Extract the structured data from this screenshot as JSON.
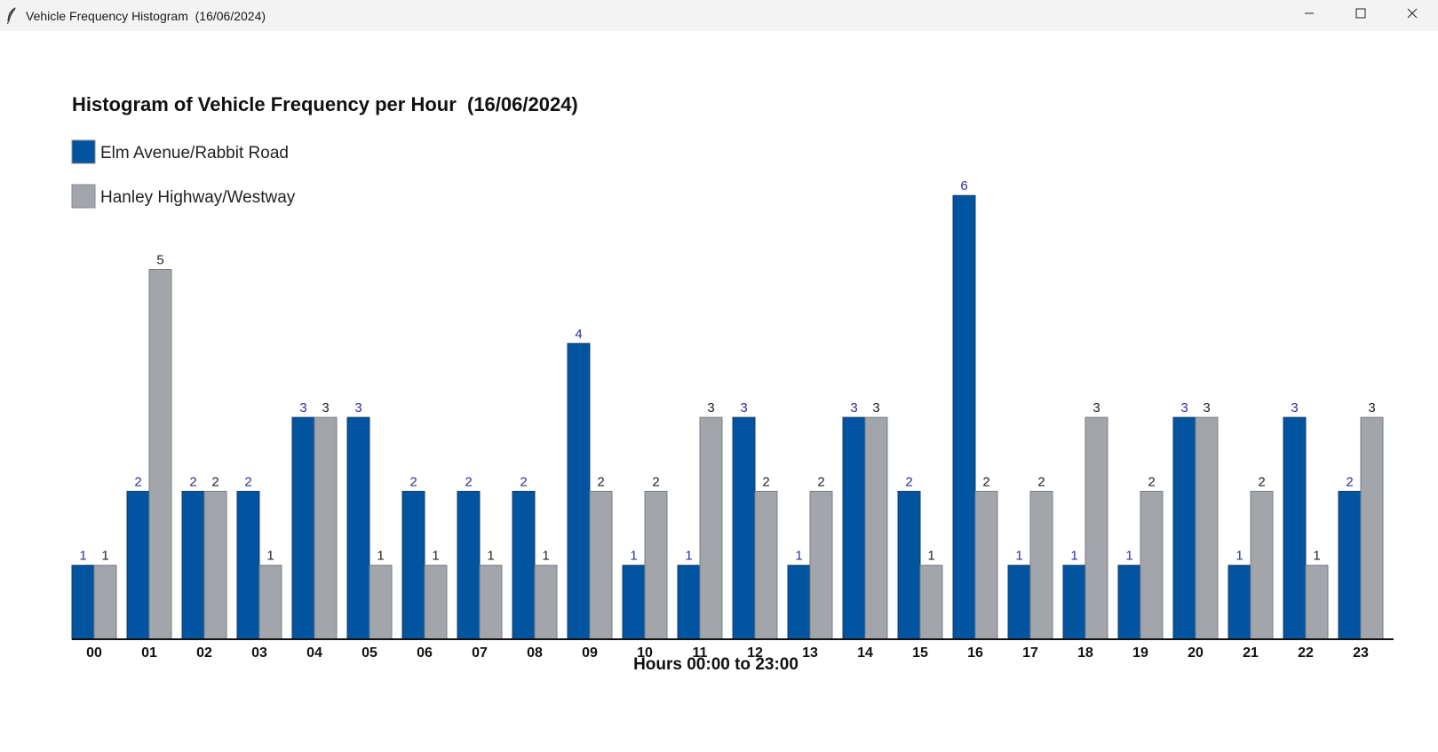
{
  "window": {
    "title": "Vehicle Frequency Histogram  (16/06/2024)"
  },
  "chart_data": {
    "type": "bar",
    "title": "Histogram of Vehicle Frequency per Hour  (16/06/2024)",
    "xlabel": "Hours 00:00 to 23:00",
    "ylabel": "",
    "categories": [
      "00",
      "01",
      "02",
      "03",
      "04",
      "05",
      "06",
      "07",
      "08",
      "09",
      "10",
      "11",
      "12",
      "13",
      "14",
      "15",
      "16",
      "17",
      "18",
      "19",
      "20",
      "21",
      "22",
      "23"
    ],
    "series": [
      {
        "name": "Elm Avenue/Rabbit Road",
        "color": "#0054a0",
        "label_color": "#2e2ea0",
        "values": [
          1,
          2,
          2,
          2,
          3,
          3,
          2,
          2,
          2,
          4,
          1,
          1,
          3,
          1,
          3,
          2,
          6,
          1,
          1,
          1,
          3,
          1,
          3,
          2
        ]
      },
      {
        "name": "Hanley Highway/Westway",
        "color": "#a2a5aa",
        "label_color": "#222222",
        "values": [
          1,
          5,
          2,
          1,
          3,
          1,
          1,
          1,
          1,
          2,
          2,
          3,
          2,
          2,
          3,
          1,
          2,
          2,
          3,
          2,
          3,
          2,
          1,
          3
        ]
      }
    ],
    "ylim": [
      0,
      6
    ],
    "grid": false,
    "legend_position": "top-left"
  }
}
